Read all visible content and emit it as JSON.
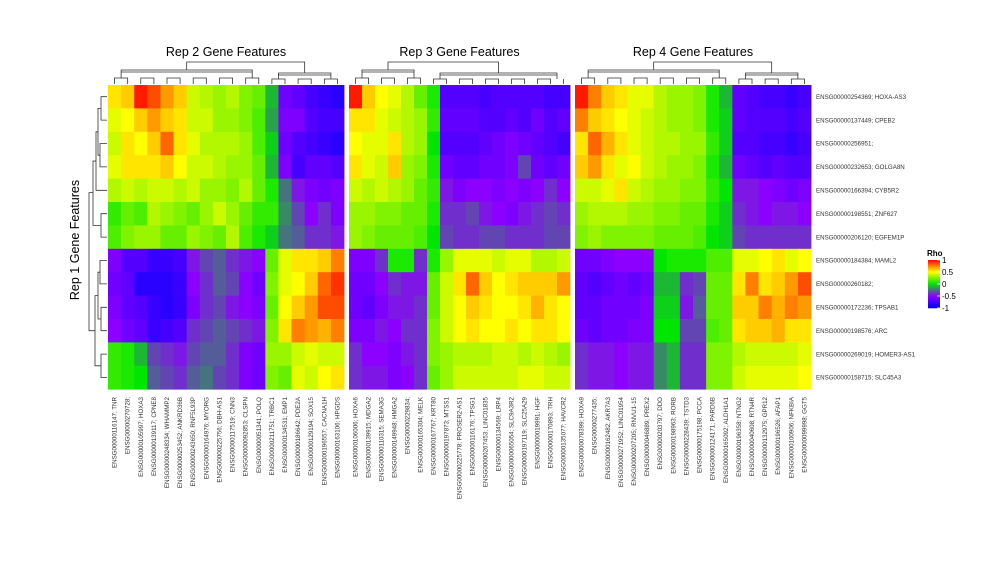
{
  "chart_data": {
    "type": "heatmap",
    "ylabel": "Rep 1 Gene Features",
    "legend": {
      "title": "Rho",
      "ticks": [
        "1",
        "0.5",
        "0",
        "-0.5",
        "-1"
      ],
      "tick_values": [
        1,
        0.5,
        0,
        -0.5,
        -1
      ],
      "placement": "right"
    },
    "rows": [
      "ENSG00000254369; HOXA-AS3",
      "ENSG00000137449; CPEB2",
      "ENSG00000256951;",
      "ENSG00000232653; GOLGA8N",
      "ENSG00000166394; CYB5R2",
      "ENSG00000198551; ZNF627",
      "ENSG00000206120; EGFEM1P",
      "ENSG00000184384; MAML2",
      "ENSG00000260182;",
      "ENSG00000172236; TPSAB1",
      "ENSG00000198576; ARC",
      "ENSG00000269019; HOMER3-AS1",
      "ENSG00000158715; SLC45A3"
    ],
    "panels": [
      {
        "title": "Rep 2 Gene Features",
        "columns": [
          "ENSG00000116147; TNR",
          "ENSG00000270728;",
          "ENSG00000105997; HOXA3",
          "ENSG00000139117; CPNE8",
          "ENSG00000248334; WHAMMP2",
          "ENSG00000253452; ANKRD36B",
          "ENSG00000243650; RNF5L93P",
          "ENSG00000164976; MYORG",
          "ENSG00000225756; DBH-AS1",
          "ENSG00000117519; CNN3",
          "ENSG00000092853; CLSPN",
          "ENSG00000051341; POLQ",
          "ENSG00000211751; TRBC1",
          "ENSG00000134531; EMP1",
          "ENSG00000186642; PDE2A",
          "ENSG00000129194; SOX15",
          "ENSG00000196557; CACNA1H",
          "ENSG00000163106; HPGDS"
        ],
        "values": [
          [
            0.55,
            0.6,
            0.95,
            0.85,
            0.7,
            0.6,
            0.4,
            0.35,
            0.3,
            0.35,
            0.25,
            0.2,
            -0.1,
            -0.6,
            -0.65,
            -0.75,
            -0.8,
            -0.85
          ],
          [
            0.45,
            0.5,
            0.6,
            0.7,
            0.6,
            0.55,
            0.4,
            0.4,
            0.3,
            0.3,
            0.25,
            0.15,
            -0.15,
            -0.55,
            -0.55,
            -0.7,
            -0.75,
            -0.75
          ],
          [
            0.4,
            0.55,
            0.5,
            0.6,
            0.8,
            0.55,
            0.45,
            0.35,
            0.35,
            0.35,
            0.3,
            0.15,
            -0.05,
            -0.6,
            -0.7,
            -0.75,
            -0.8,
            -0.85
          ],
          [
            0.45,
            0.55,
            0.55,
            0.55,
            0.6,
            0.5,
            0.4,
            0.4,
            0.35,
            0.3,
            0.3,
            0.2,
            -0.1,
            -0.55,
            -0.75,
            -0.65,
            -0.65,
            -0.7
          ],
          [
            0.35,
            0.4,
            0.35,
            0.4,
            0.4,
            0.35,
            0.4,
            0.3,
            0.3,
            0.25,
            0.35,
            0.2,
            0.05,
            -0.25,
            -0.45,
            -0.55,
            -0.6,
            -0.55
          ],
          [
            0.1,
            0.2,
            0.15,
            0.35,
            0.3,
            0.25,
            0.2,
            0.3,
            0.4,
            0.3,
            0.2,
            0.1,
            0.1,
            -0.2,
            -0.35,
            -0.5,
            -0.4,
            -0.55
          ],
          [
            0.15,
            0.25,
            0.3,
            0.3,
            0.2,
            0.2,
            0.3,
            0.25,
            0.2,
            0.35,
            0.15,
            0.05,
            -0.05,
            -0.25,
            -0.3,
            -0.4,
            -0.4,
            -0.45
          ],
          [
            -0.55,
            -0.7,
            -0.7,
            -0.8,
            -0.8,
            -0.75,
            -0.45,
            -0.35,
            -0.3,
            -0.4,
            -0.45,
            -0.5,
            0.2,
            0.45,
            0.55,
            0.55,
            0.6,
            0.75
          ],
          [
            -0.6,
            -0.65,
            -0.85,
            -0.85,
            -0.85,
            -0.8,
            -0.5,
            -0.4,
            -0.3,
            -0.35,
            -0.5,
            -0.6,
            0.25,
            0.45,
            0.5,
            0.6,
            0.8,
            0.9
          ],
          [
            -0.55,
            -0.65,
            -0.7,
            -0.8,
            -0.85,
            -0.8,
            -0.55,
            -0.4,
            -0.35,
            -0.45,
            -0.5,
            -0.55,
            0.2,
            0.5,
            0.6,
            0.7,
            0.85,
            0.85
          ],
          [
            -0.5,
            -0.6,
            -0.65,
            -0.8,
            -0.75,
            -0.7,
            -0.4,
            -0.35,
            -0.3,
            -0.35,
            -0.4,
            -0.45,
            0.25,
            0.55,
            0.75,
            0.7,
            0.65,
            0.75
          ],
          [
            0.1,
            0.05,
            -0.1,
            -0.35,
            -0.4,
            -0.45,
            -0.35,
            -0.3,
            -0.3,
            -0.4,
            -0.55,
            -0.6,
            0.3,
            0.3,
            0.4,
            0.45,
            0.4,
            0.4
          ],
          [
            0.1,
            0.05,
            0.0,
            -0.3,
            -0.35,
            -0.4,
            -0.3,
            -0.25,
            -0.35,
            -0.4,
            -0.55,
            -0.6,
            0.25,
            0.2,
            0.45,
            0.4,
            0.5,
            0.55
          ]
        ]
      },
      {
        "title": "Rep 3 Gene Features",
        "columns": [
          "ENSG00000106006; HOXA6",
          "ENSG00000139915; MDGA2",
          "ENSG00000110315; SEMA3G",
          "ENSG00000149948; HMGA2",
          "ENSG00000229834;",
          "ENSG00000165304; MELK",
          "ENSG00000167767; KRT80",
          "ENSG00000197873; MTSS1",
          "ENSG00000225778; PROSER2-AS1",
          "ENSG00000116176; TPSG1",
          "ENSG00000267453; LINC01835",
          "ENSG00000134569; LRP4",
          "ENSG00000065054; SLC9A3R2",
          "ENSG00000197119; SLC25A29",
          "ENSG00000019991; HGF",
          "ENSG00000170893; TRH",
          "ENSG00000135077; HAVCR2"
        ],
        "values": [
          [
            0.95,
            0.6,
            0.5,
            0.45,
            0.35,
            0.2,
            0.05,
            -0.7,
            -0.7,
            -0.7,
            -0.75,
            -0.7,
            -0.7,
            -0.7,
            -0.7,
            -0.75,
            -0.75
          ],
          [
            0.55,
            0.55,
            0.45,
            0.4,
            0.35,
            0.3,
            0.1,
            -0.65,
            -0.65,
            -0.65,
            -0.7,
            -0.7,
            -0.65,
            -0.7,
            -0.6,
            -0.7,
            -0.65
          ],
          [
            0.5,
            0.45,
            0.45,
            0.55,
            0.35,
            0.3,
            0.0,
            -0.7,
            -0.7,
            -0.7,
            -0.65,
            -0.6,
            -0.55,
            -0.6,
            -0.65,
            -0.7,
            -0.75
          ],
          [
            0.55,
            0.45,
            0.4,
            0.6,
            0.3,
            0.25,
            0.05,
            -0.6,
            -0.65,
            -0.65,
            -0.6,
            -0.6,
            -0.55,
            -0.35,
            -0.6,
            -0.65,
            -0.6
          ],
          [
            0.4,
            0.35,
            0.4,
            0.35,
            0.3,
            0.2,
            0.1,
            -0.45,
            -0.55,
            -0.5,
            -0.5,
            -0.55,
            -0.5,
            -0.55,
            -0.5,
            -0.4,
            -0.5
          ],
          [
            0.3,
            0.3,
            0.25,
            0.25,
            0.2,
            0.2,
            0.05,
            -0.4,
            -0.4,
            -0.35,
            -0.45,
            -0.5,
            -0.55,
            -0.45,
            -0.4,
            -0.35,
            -0.4
          ],
          [
            0.3,
            0.25,
            0.2,
            0.2,
            0.2,
            0.15,
            0.0,
            -0.35,
            -0.4,
            -0.4,
            -0.35,
            -0.35,
            -0.4,
            -0.4,
            -0.4,
            -0.35,
            -0.35
          ],
          [
            -0.55,
            -0.55,
            -0.4,
            0.05,
            0.05,
            -0.4,
            0.05,
            0.3,
            0.45,
            0.45,
            0.45,
            0.4,
            0.45,
            0.45,
            0.35,
            0.35,
            0.4
          ],
          [
            -0.6,
            -0.6,
            -0.5,
            -0.4,
            -0.45,
            -0.45,
            0.2,
            0.4,
            0.55,
            0.8,
            0.6,
            0.5,
            0.55,
            0.6,
            0.6,
            0.6,
            0.7
          ],
          [
            -0.6,
            -0.65,
            -0.55,
            -0.45,
            -0.45,
            -0.4,
            0.2,
            0.4,
            0.5,
            0.6,
            0.55,
            0.5,
            0.5,
            0.55,
            0.65,
            0.55,
            0.5
          ],
          [
            -0.55,
            -0.55,
            -0.45,
            -0.5,
            -0.4,
            -0.4,
            0.25,
            0.4,
            0.5,
            0.55,
            0.5,
            0.5,
            0.55,
            0.5,
            0.55,
            0.55,
            0.5
          ],
          [
            -0.4,
            -0.5,
            -0.5,
            -0.55,
            -0.45,
            -0.4,
            0.25,
            0.3,
            0.35,
            0.35,
            0.35,
            0.4,
            0.4,
            0.35,
            0.4,
            0.35,
            0.3
          ],
          [
            -0.4,
            -0.45,
            -0.45,
            -0.55,
            -0.5,
            -0.4,
            0.2,
            0.3,
            0.4,
            0.4,
            0.4,
            0.4,
            0.4,
            0.45,
            0.45,
            0.4,
            0.4
          ]
        ]
      },
      {
        "title": "Rep 4 Gene Features",
        "columns": [
          "ENSG00000078399; HOXA9",
          "ENSG00000277435;",
          "ENSG00000162482; AKR7A3",
          "ENSG00000271952; LINC01954",
          "ENSG00000207205; RNVU1-15",
          "ENSG00000046889; PREX2",
          "ENSG00000203797; DDO",
          "ENSG00000198963; RORB",
          "ENSG00000228439; TSTD3",
          "ENSG00000175198; PCCA",
          "ENSG00000124171; PARD6B",
          "ENSG00000165092; ALDH1A1",
          "ENSG00000196358; NTNG2",
          "ENSG00000040608; RTN4R",
          "ENSG00000132975; GPR12",
          "ENSG00000196526; AFAP1",
          "ENSG00000100906; NFKBIA",
          "ENSG00000099998; GGT5"
        ],
        "values": [
          [
            0.95,
            0.75,
            0.6,
            0.55,
            0.45,
            0.45,
            0.35,
            0.3,
            0.3,
            0.25,
            0.05,
            -0.1,
            -0.65,
            -0.7,
            -0.75,
            -0.75,
            -0.8,
            -0.75
          ],
          [
            0.75,
            0.6,
            0.55,
            0.5,
            0.45,
            0.4,
            0.35,
            0.3,
            0.3,
            0.25,
            0.05,
            -0.05,
            -0.65,
            -0.7,
            -0.7,
            -0.7,
            -0.75,
            -0.7
          ],
          [
            0.55,
            0.8,
            0.65,
            0.55,
            0.45,
            0.4,
            0.35,
            0.35,
            0.3,
            0.3,
            0.1,
            -0.05,
            -0.7,
            -0.7,
            -0.75,
            -0.75,
            -0.8,
            -0.75
          ],
          [
            0.6,
            0.7,
            0.55,
            0.45,
            0.5,
            0.4,
            0.35,
            0.3,
            0.3,
            0.25,
            0.05,
            -0.1,
            -0.6,
            -0.65,
            -0.7,
            -0.65,
            -0.7,
            -0.7
          ],
          [
            0.4,
            0.4,
            0.45,
            0.55,
            0.4,
            0.35,
            0.3,
            0.3,
            0.25,
            0.25,
            0.1,
            0.0,
            -0.45,
            -0.45,
            -0.5,
            -0.55,
            -0.6,
            -0.55
          ],
          [
            0.3,
            0.35,
            0.35,
            0.35,
            0.3,
            0.3,
            0.25,
            0.25,
            0.2,
            0.2,
            0.05,
            -0.05,
            -0.4,
            -0.45,
            -0.5,
            -0.45,
            -0.45,
            -0.5
          ],
          [
            0.25,
            0.3,
            0.25,
            0.25,
            0.25,
            0.25,
            0.2,
            0.2,
            0.2,
            0.15,
            0.0,
            -0.05,
            -0.35,
            -0.4,
            -0.4,
            -0.4,
            -0.4,
            -0.4
          ],
          [
            -0.6,
            -0.6,
            -0.55,
            -0.5,
            -0.5,
            -0.5,
            0.0,
            0.05,
            0.05,
            0.05,
            0.15,
            0.15,
            0.45,
            0.45,
            0.5,
            0.55,
            0.45,
            0.5
          ],
          [
            -0.65,
            -0.7,
            -0.65,
            -0.6,
            -0.65,
            -0.6,
            -0.1,
            -0.1,
            -0.4,
            -0.35,
            0.2,
            0.2,
            0.55,
            0.75,
            0.55,
            0.6,
            0.7,
            0.85
          ],
          [
            -0.65,
            -0.65,
            -0.6,
            -0.6,
            -0.6,
            -0.55,
            -0.05,
            -0.05,
            -0.45,
            -0.3,
            0.2,
            0.2,
            0.6,
            0.6,
            0.75,
            0.65,
            0.75,
            0.7
          ],
          [
            -0.6,
            -0.65,
            -0.6,
            -0.6,
            -0.55,
            -0.55,
            0.0,
            0.0,
            -0.35,
            -0.35,
            0.15,
            0.2,
            0.55,
            0.6,
            0.6,
            0.65,
            0.55,
            0.55
          ],
          [
            -0.4,
            -0.45,
            -0.45,
            -0.5,
            -0.45,
            -0.45,
            -0.2,
            -0.1,
            -0.4,
            -0.4,
            0.25,
            0.25,
            0.35,
            0.4,
            0.4,
            0.4,
            0.4,
            0.45
          ],
          [
            -0.4,
            -0.45,
            -0.45,
            -0.5,
            -0.45,
            -0.45,
            -0.2,
            -0.1,
            -0.4,
            -0.4,
            0.25,
            0.25,
            0.4,
            0.45,
            0.45,
            0.45,
            0.45,
            0.5
          ]
        ]
      }
    ]
  }
}
